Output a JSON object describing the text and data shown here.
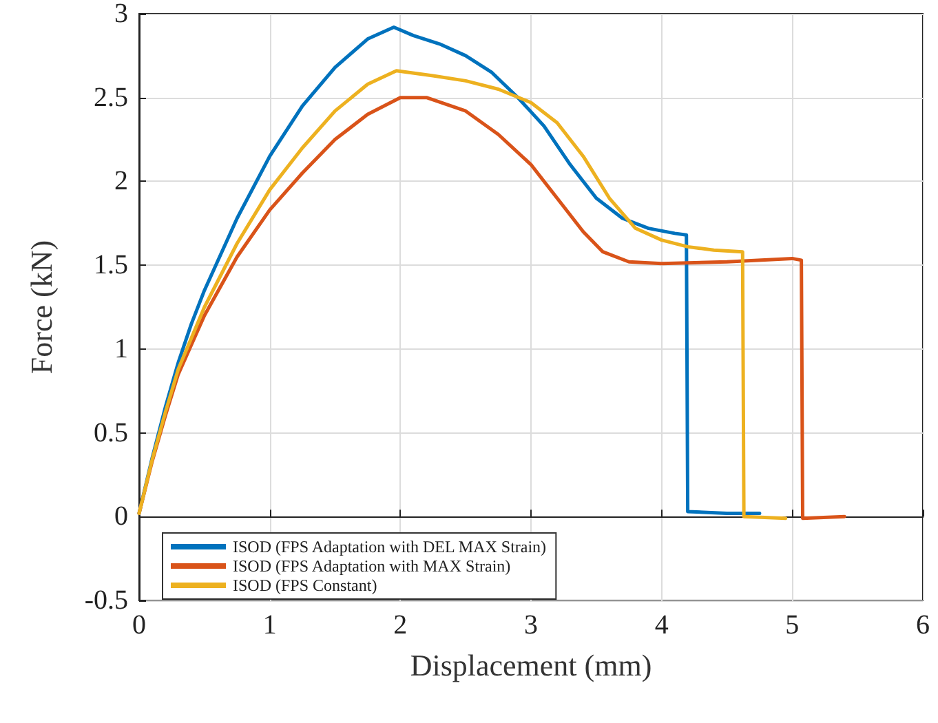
{
  "chart_data": {
    "type": "line",
    "xlabel": "Displacement (mm)",
    "ylabel": "Force (kN)",
    "xlim": [
      0,
      6
    ],
    "xticks": [
      0,
      1,
      2,
      3,
      4,
      5,
      6
    ],
    "ylim": [
      -0.5,
      3
    ],
    "yticks": [
      -0.5,
      0,
      0.5,
      1,
      1.5,
      2,
      2.5,
      3
    ],
    "grid": true,
    "legend": "bottom left",
    "marker": "none",
    "line_style": "solid",
    "series": [
      {
        "name": "ISOD (FPS Adaptation with DEL MAX Strain)",
        "color": "#0072bd",
        "x": [
          0,
          0.1,
          0.2,
          0.3,
          0.4,
          0.5,
          0.75,
          1.0,
          1.25,
          1.5,
          1.75,
          1.95,
          2.1,
          2.3,
          2.5,
          2.7,
          2.9,
          3.1,
          3.3,
          3.5,
          3.7,
          3.9,
          4.1,
          4.19,
          4.2,
          4.5,
          4.75
        ],
        "values": [
          0.02,
          0.35,
          0.65,
          0.92,
          1.15,
          1.35,
          1.78,
          2.15,
          2.45,
          2.68,
          2.85,
          2.92,
          2.87,
          2.82,
          2.75,
          2.65,
          2.5,
          2.33,
          2.1,
          1.9,
          1.78,
          1.72,
          1.69,
          1.68,
          0.03,
          0.02,
          0.02
        ]
      },
      {
        "name": "ISOD (FPS Adaptation with MAX Strain)",
        "color": "#d95319",
        "x": [
          0,
          0.1,
          0.2,
          0.3,
          0.5,
          0.75,
          1.0,
          1.25,
          1.5,
          1.75,
          2.0,
          2.2,
          2.5,
          2.75,
          3.0,
          3.2,
          3.4,
          3.55,
          3.75,
          4.0,
          4.5,
          5.0,
          5.07,
          5.08,
          5.4
        ],
        "values": [
          0.02,
          0.33,
          0.6,
          0.85,
          1.2,
          1.55,
          1.83,
          2.05,
          2.25,
          2.4,
          2.5,
          2.5,
          2.42,
          2.28,
          2.1,
          1.9,
          1.7,
          1.58,
          1.52,
          1.51,
          1.52,
          1.54,
          1.53,
          -0.01,
          0.0
        ]
      },
      {
        "name": "ISOD (FPS Constant)",
        "color": "#edb120",
        "x": [
          0,
          0.1,
          0.2,
          0.3,
          0.5,
          0.75,
          1.0,
          1.25,
          1.5,
          1.75,
          1.97,
          2.25,
          2.5,
          2.75,
          3.0,
          3.2,
          3.4,
          3.6,
          3.8,
          4.0,
          4.2,
          4.4,
          4.62,
          4.63,
          4.95
        ],
        "values": [
          0.02,
          0.34,
          0.62,
          0.88,
          1.25,
          1.63,
          1.95,
          2.2,
          2.42,
          2.58,
          2.66,
          2.63,
          2.6,
          2.55,
          2.47,
          2.35,
          2.15,
          1.9,
          1.72,
          1.65,
          1.61,
          1.59,
          1.58,
          0.0,
          -0.01
        ]
      }
    ]
  }
}
